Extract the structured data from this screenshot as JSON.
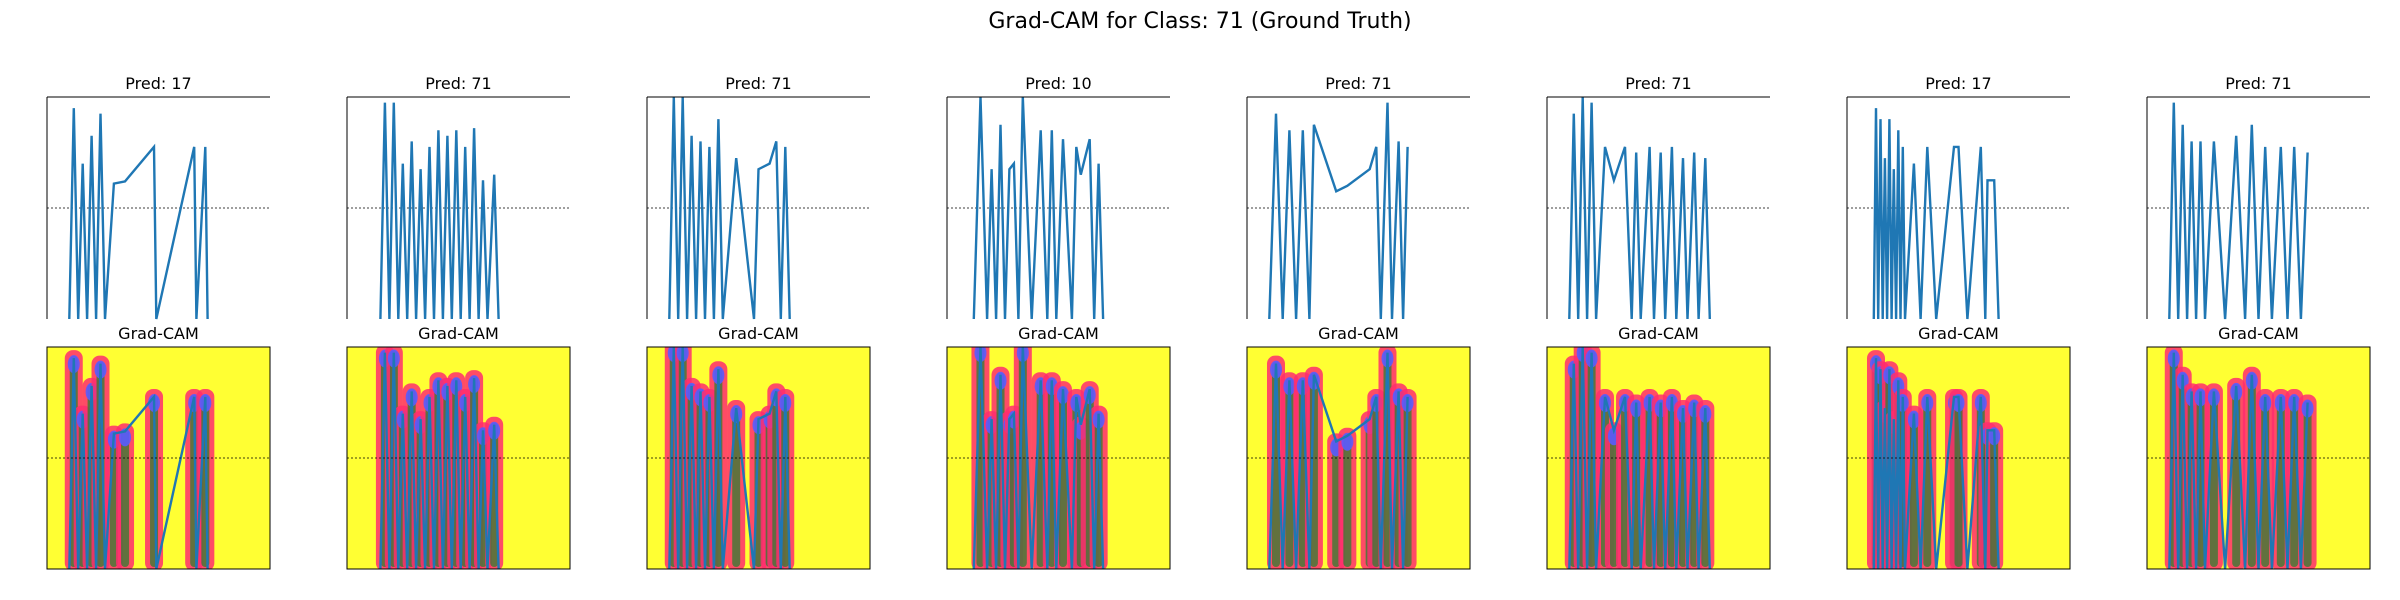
{
  "figure": {
    "suptitle": "Grad-CAM for Class: 71 (Ground Truth)",
    "gradcam_label": "Grad-CAM"
  },
  "colors": {
    "signal": "#1f77b4",
    "axes": "#000000",
    "zero_line": "#000000",
    "heat_background": "#ffff33",
    "heat_low": "#ff2d6f",
    "heat_mid": "#2e7d32",
    "heat_high": "#5b5bff"
  },
  "chart_data": [
    {
      "type": "line",
      "title": "Pred: 17",
      "ylim": [
        -1,
        1
      ],
      "zero_line": true,
      "x": [
        0.1,
        0.12,
        0.14,
        0.16,
        0.18,
        0.2,
        0.22,
        0.24,
        0.26,
        0.3,
        0.35,
        0.48,
        0.49,
        0.66,
        0.67,
        0.71,
        0.72
      ],
      "y": [
        -1,
        0.9,
        -1,
        0.4,
        -1,
        0.65,
        -1,
        0.85,
        -1,
        0.22,
        0.24,
        0.55,
        -1,
        0.55,
        -1,
        0.55,
        -1
      ]
    },
    {
      "type": "line",
      "title": "Pred: 71",
      "ylim": [
        -1,
        1
      ],
      "zero_line": true,
      "x": [
        0.15,
        0.17,
        0.19,
        0.21,
        0.23,
        0.25,
        0.27,
        0.29,
        0.31,
        0.33,
        0.35,
        0.37,
        0.39,
        0.41,
        0.43,
        0.45,
        0.47,
        0.49,
        0.51,
        0.53,
        0.55,
        0.57,
        0.59,
        0.61,
        0.63,
        0.66,
        0.68
      ],
      "y": [
        -1,
        0.95,
        -1,
        0.95,
        -1,
        0.4,
        -1,
        0.6,
        -1,
        0.35,
        -1,
        0.55,
        -1,
        0.7,
        -1,
        0.65,
        -1,
        0.7,
        -1,
        0.55,
        -1,
        0.72,
        -1,
        0.25,
        -1,
        0.3,
        -1
      ]
    },
    {
      "type": "line",
      "title": "Pred: 71",
      "ylim": [
        -1,
        1
      ],
      "zero_line": true,
      "x": [
        0.1,
        0.12,
        0.14,
        0.16,
        0.18,
        0.2,
        0.22,
        0.24,
        0.26,
        0.28,
        0.3,
        0.32,
        0.34,
        0.4,
        0.48,
        0.5,
        0.55,
        0.58,
        0.6,
        0.62,
        0.64
      ],
      "y": [
        -1,
        1,
        -1,
        1,
        -1,
        0.65,
        -1,
        0.6,
        -1,
        0.55,
        -1,
        0.8,
        -1,
        0.45,
        -1,
        0.35,
        0.4,
        0.6,
        -1,
        0.55,
        -1
      ]
    },
    {
      "type": "line",
      "title": "Pred: 10",
      "ylim": [
        -1,
        1
      ],
      "zero_line": true,
      "x": [
        0.12,
        0.15,
        0.18,
        0.2,
        0.22,
        0.24,
        0.26,
        0.28,
        0.3,
        0.32,
        0.34,
        0.38,
        0.42,
        0.45,
        0.47,
        0.49,
        0.52,
        0.56,
        0.58,
        0.6,
        0.64,
        0.66,
        0.68,
        0.7
      ],
      "y": [
        -1,
        1,
        -1,
        0.35,
        -1,
        0.75,
        -1,
        0.35,
        0.4,
        -1,
        1,
        -1,
        0.7,
        -1,
        0.7,
        -1,
        0.62,
        -1,
        0.55,
        0.3,
        0.62,
        -1,
        0.4,
        -1
      ]
    },
    {
      "type": "line",
      "title": "Pred: 71",
      "ylim": [
        -1,
        1
      ],
      "zero_line": true,
      "x": [
        0.1,
        0.13,
        0.16,
        0.19,
        0.22,
        0.25,
        0.28,
        0.3,
        0.4,
        0.45,
        0.55,
        0.58,
        0.6,
        0.63,
        0.65,
        0.68,
        0.7,
        0.72
      ],
      "y": [
        -1,
        0.85,
        -1,
        0.7,
        -1,
        0.7,
        -1,
        0.75,
        0.15,
        0.2,
        0.35,
        0.55,
        -1,
        0.95,
        -1,
        0.6,
        -1,
        0.55
      ]
    },
    {
      "type": "line",
      "title": "Pred: 71",
      "ylim": [
        -1,
        1
      ],
      "zero_line": true,
      "x": [
        0.1,
        0.12,
        0.14,
        0.16,
        0.18,
        0.2,
        0.22,
        0.26,
        0.3,
        0.35,
        0.38,
        0.4,
        0.42,
        0.46,
        0.48,
        0.51,
        0.53,
        0.56,
        0.58,
        0.61,
        0.63,
        0.66,
        0.68,
        0.71,
        0.73
      ],
      "y": [
        -1,
        0.85,
        -1,
        1,
        -1,
        0.95,
        -1,
        0.55,
        0.25,
        0.55,
        -1,
        0.5,
        -1,
        0.55,
        -1,
        0.5,
        -1,
        0.55,
        -1,
        0.45,
        -1,
        0.5,
        -1,
        0.45,
        -1
      ]
    },
    {
      "type": "line",
      "title": "Pred: 17",
      "ylim": [
        -1,
        1
      ],
      "zero_line": true,
      "x": [
        0.12,
        0.13,
        0.14,
        0.15,
        0.16,
        0.17,
        0.18,
        0.19,
        0.2,
        0.21,
        0.22,
        0.23,
        0.24,
        0.25,
        0.26,
        0.3,
        0.33,
        0.36,
        0.4,
        0.48,
        0.5,
        0.54,
        0.6,
        0.62,
        0.63,
        0.66,
        0.68
      ],
      "y": [
        -1,
        0.9,
        -1,
        0.8,
        -1,
        0.45,
        -1,
        0.8,
        -1,
        0.35,
        -1,
        0.7,
        -1,
        0.55,
        -1,
        0.4,
        -1,
        0.55,
        -1,
        0.55,
        0.55,
        -1,
        0.55,
        -1,
        0.25,
        0.25,
        -1
      ]
    },
    {
      "type": "line",
      "title": "Pred: 71",
      "ylim": [
        -1,
        1
      ],
      "zero_line": true,
      "x": [
        0.1,
        0.12,
        0.14,
        0.16,
        0.18,
        0.2,
        0.22,
        0.24,
        0.26,
        0.3,
        0.35,
        0.4,
        0.44,
        0.47,
        0.5,
        0.53,
        0.56,
        0.6,
        0.63,
        0.66,
        0.69,
        0.72
      ],
      "y": [
        -1,
        0.95,
        -1,
        0.75,
        -1,
        0.6,
        -1,
        0.6,
        -1,
        0.6,
        -1,
        0.65,
        -1,
        0.75,
        -1,
        0.55,
        -1,
        0.55,
        -1,
        0.55,
        -1,
        0.5
      ]
    }
  ]
}
